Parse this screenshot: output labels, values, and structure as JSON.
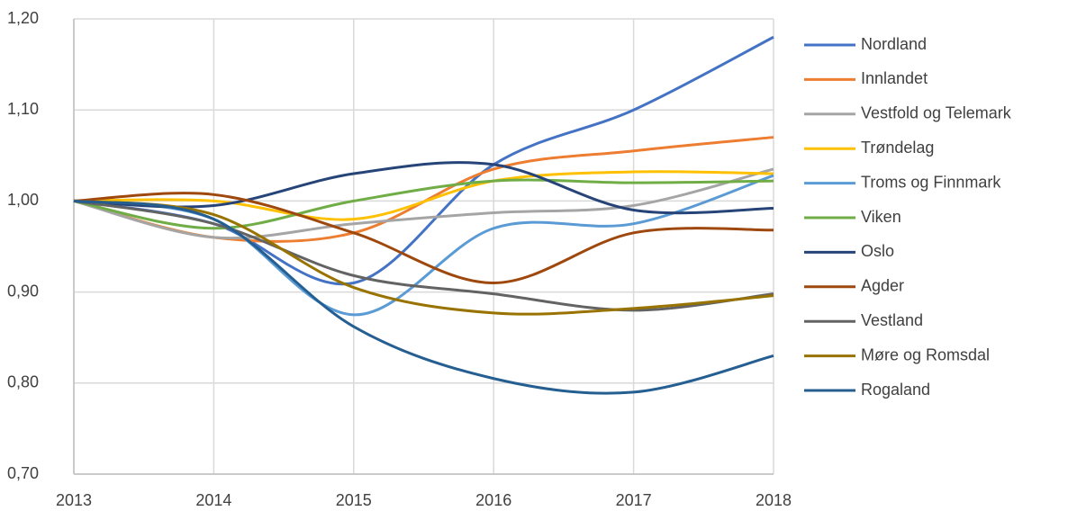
{
  "chart_data": {
    "type": "line",
    "x": [
      2013,
      2014,
      2015,
      2016,
      2017,
      2018
    ],
    "xlim": [
      2013,
      2018
    ],
    "xticks": [
      2013,
      2014,
      2015,
      2016,
      2017,
      2018
    ],
    "ylim": [
      0.7,
      1.2
    ],
    "yticks": [
      {
        "value": 0.7,
        "label": "0,70"
      },
      {
        "value": 0.8,
        "label": "0,80"
      },
      {
        "value": 0.9,
        "label": "0,90"
      },
      {
        "value": 1.0,
        "label": "1,00"
      },
      {
        "value": 1.1,
        "label": "1,10"
      },
      {
        "value": 1.2,
        "label": "1,20"
      }
    ],
    "grid": true,
    "smooth": true,
    "legend": "right",
    "series": [
      {
        "name": "Nordland",
        "color": "#4472c4",
        "values": [
          1.0,
          0.975,
          0.91,
          1.04,
          1.1,
          1.18
        ]
      },
      {
        "name": "Innlandet",
        "color": "#ed7d31",
        "values": [
          1.0,
          0.96,
          0.965,
          1.035,
          1.055,
          1.07
        ]
      },
      {
        "name": "Vestfold og Telemark",
        "color": "#a5a5a5",
        "values": [
          1.0,
          0.96,
          0.975,
          0.987,
          0.995,
          1.035
        ]
      },
      {
        "name": "Trøndelag",
        "color": "#ffc000",
        "values": [
          1.0,
          1.0,
          0.98,
          1.022,
          1.032,
          1.03
        ]
      },
      {
        "name": "Troms og Finnmark",
        "color": "#5b9bd5",
        "values": [
          1.0,
          0.98,
          0.875,
          0.97,
          0.975,
          1.028
        ]
      },
      {
        "name": "Viken",
        "color": "#70ad47",
        "values": [
          1.0,
          0.97,
          1.0,
          1.022,
          1.02,
          1.022
        ]
      },
      {
        "name": "Oslo",
        "color": "#264478",
        "values": [
          1.0,
          0.995,
          1.03,
          1.04,
          0.99,
          0.992
        ]
      },
      {
        "name": "Agder",
        "color": "#9e480e",
        "values": [
          1.0,
          1.007,
          0.965,
          0.91,
          0.965,
          0.968
        ]
      },
      {
        "name": "Vestland",
        "color": "#636363",
        "values": [
          1.0,
          0.975,
          0.918,
          0.898,
          0.88,
          0.898
        ]
      },
      {
        "name": "Møre og Romsdal",
        "color": "#997300",
        "values": [
          1.0,
          0.985,
          0.905,
          0.877,
          0.882,
          0.896
        ]
      },
      {
        "name": "Rogaland",
        "color": "#255e91",
        "values": [
          1.0,
          0.98,
          0.862,
          0.805,
          0.79,
          0.83
        ]
      }
    ]
  }
}
